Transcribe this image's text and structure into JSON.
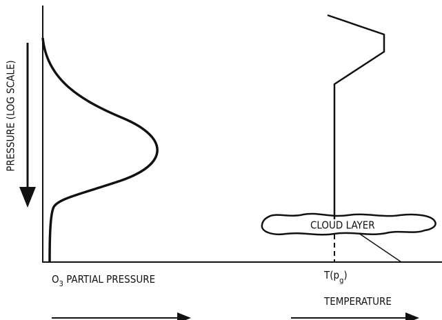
{
  "axis_label": "PRESSURE (LOG SCALE)",
  "x_label": {
    "parts": [
      "O",
      "3",
      " PARTIAL PRESSURE"
    ]
  },
  "temp_marker": {
    "parts": [
      "T(p",
      "g",
      ")"
    ]
  },
  "temp_label": "TEMPERATURE",
  "cloud_label": "CLOUD LAYER"
}
